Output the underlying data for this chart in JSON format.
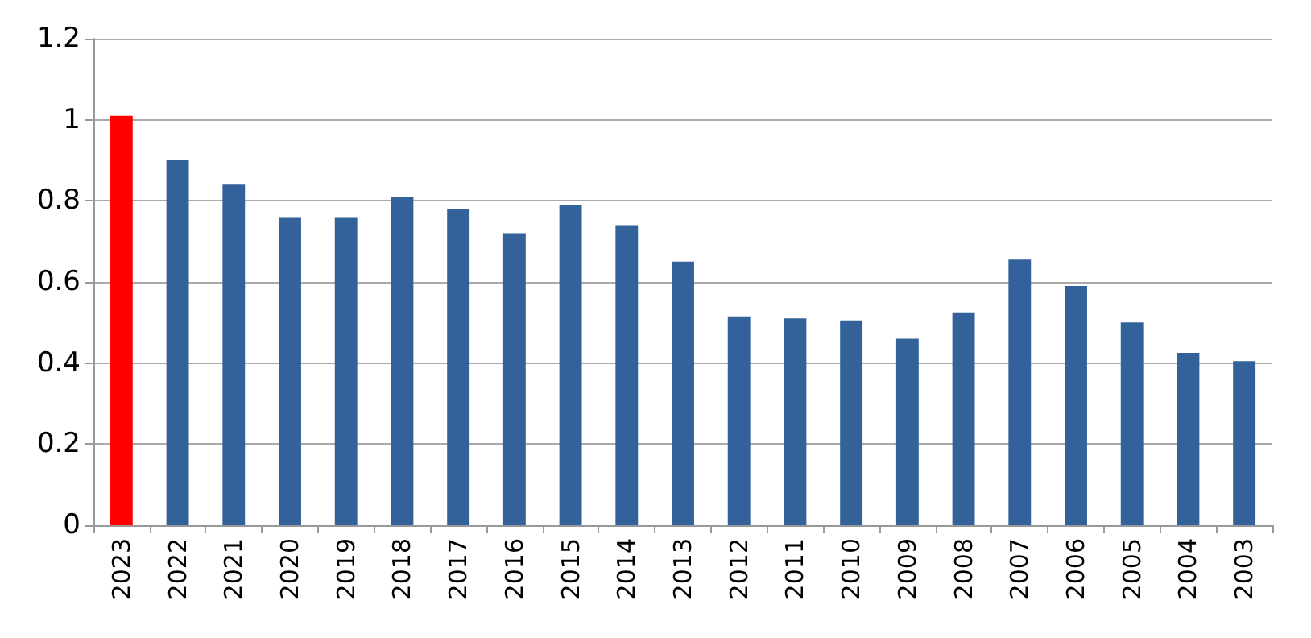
{
  "chart_data": {
    "type": "bar",
    "categories": [
      "2023",
      "2022",
      "2021",
      "2020",
      "2019",
      "2018",
      "2017",
      "2016",
      "2015",
      "2014",
      "2013",
      "2012",
      "2011",
      "2010",
      "2009",
      "2008",
      "2007",
      "2006",
      "2005",
      "2004",
      "2003"
    ],
    "values": [
      1.01,
      0.9,
      0.84,
      0.76,
      0.76,
      0.81,
      0.78,
      0.72,
      0.79,
      0.74,
      0.65,
      0.515,
      0.51,
      0.505,
      0.46,
      0.525,
      0.655,
      0.59,
      0.5,
      0.425,
      0.405
    ],
    "colors": [
      "#ff0000",
      "#336199",
      "#336199",
      "#336199",
      "#336199",
      "#336199",
      "#336199",
      "#336199",
      "#336199",
      "#336199",
      "#336199",
      "#336199",
      "#336199",
      "#336199",
      "#336199",
      "#336199",
      "#336199",
      "#336199",
      "#336199",
      "#336199",
      "#336199"
    ],
    "ylim": [
      0,
      1.2
    ],
    "yticks": [
      0,
      0.2,
      0.4,
      0.6,
      0.8,
      1,
      1.2
    ],
    "grid": "y"
  }
}
